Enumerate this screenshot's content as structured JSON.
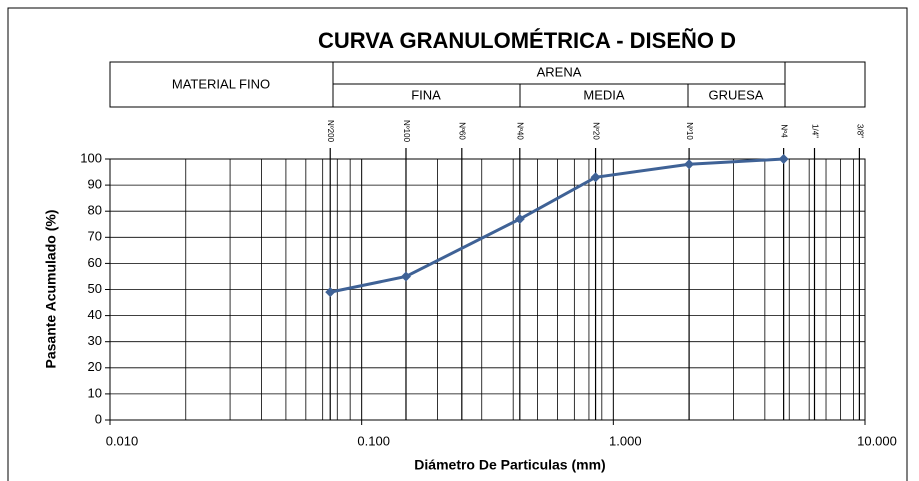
{
  "chart_data": {
    "type": "line",
    "title": "CURVA GRANULOMÉTRICA - DISEÑO D",
    "header_table": {
      "material_fino": "MATERIAL FINO",
      "arena": "ARENA",
      "fina": "FINA",
      "media": "MEDIA",
      "gruesa": "GRUESA"
    },
    "x_label": "Diámetro De Particulas (mm)",
    "y_label": "Pasante Acumulado (%)",
    "x_scale": "log",
    "xlim": [
      0.01,
      10
    ],
    "xticks": [
      {
        "value": 0.01,
        "label": "0.010"
      },
      {
        "value": 0.1,
        "label": "0.100"
      },
      {
        "value": 1,
        "label": "1.000"
      },
      {
        "value": 10,
        "label": "10.000"
      }
    ],
    "ylim": [
      0,
      100
    ],
    "yticks": [
      0,
      10,
      20,
      30,
      40,
      50,
      60,
      70,
      80,
      90,
      100
    ],
    "grid": true,
    "sieves": [
      {
        "value": 0.075,
        "label": "Nº200"
      },
      {
        "value": 0.15,
        "label": "Nº100"
      },
      {
        "value": 0.25,
        "label": "Nº60"
      },
      {
        "value": 0.425,
        "label": "Nº40"
      },
      {
        "value": 0.85,
        "label": "Nº20"
      },
      {
        "value": 2,
        "label": "Nº10"
      },
      {
        "value": 4.75,
        "label": "Nº4"
      },
      {
        "value": 6.3,
        "label": "1/4\""
      },
      {
        "value": 9.5,
        "label": "3/8\""
      }
    ],
    "x": [
      0.075,
      0.15,
      0.425,
      0.85,
      2,
      4.75
    ],
    "series": [
      {
        "name": "Pasante",
        "color": "#3f6296",
        "values": [
          49,
          55,
          77,
          93,
          98,
          100
        ]
      }
    ]
  }
}
